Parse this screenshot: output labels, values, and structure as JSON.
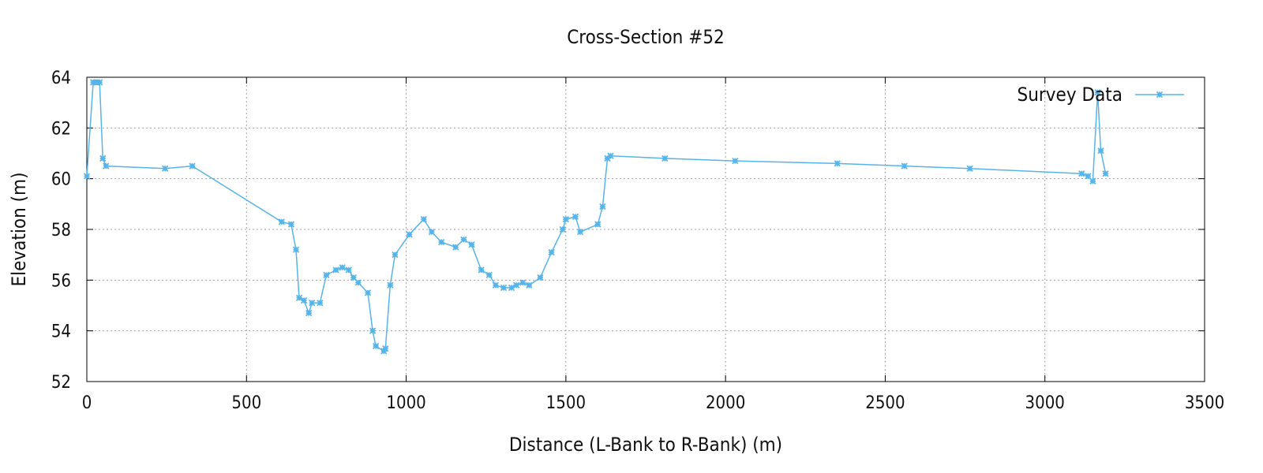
{
  "chart_data": {
    "type": "line",
    "title": "Cross-Section #52",
    "xlabel": "Distance (L-Bank to R-Bank) (m)",
    "ylabel": "Elevation (m)",
    "xlim": [
      0,
      3500
    ],
    "ylim": [
      52,
      64
    ],
    "xticks": [
      0,
      500,
      1000,
      1500,
      2000,
      2500,
      3000,
      3500
    ],
    "yticks": [
      52,
      54,
      56,
      58,
      60,
      62,
      64
    ],
    "grid": true,
    "legend_position": "top-right",
    "series_color": "#56B4E9",
    "series": [
      {
        "name": "Survey Data",
        "x": [
          0,
          20,
          30,
          40,
          50,
          60,
          245,
          330,
          610,
          640,
          655,
          665,
          680,
          695,
          705,
          730,
          750,
          780,
          800,
          820,
          835,
          850,
          880,
          895,
          905,
          930,
          935,
          950,
          965,
          1010,
          1055,
          1080,
          1110,
          1155,
          1180,
          1205,
          1235,
          1260,
          1280,
          1305,
          1330,
          1345,
          1365,
          1385,
          1420,
          1455,
          1490,
          1500,
          1530,
          1545,
          1600,
          1615,
          1630,
          1640,
          1810,
          2030,
          2350,
          2560,
          2765,
          3115,
          3135,
          3150,
          3165,
          3175,
          3190
        ],
        "y": [
          60.1,
          63.8,
          63.8,
          63.8,
          60.8,
          60.5,
          60.4,
          60.5,
          58.3,
          58.2,
          57.2,
          55.3,
          55.2,
          54.7,
          55.1,
          55.1,
          56.2,
          56.4,
          56.5,
          56.4,
          56.1,
          55.9,
          55.5,
          54.0,
          53.4,
          53.2,
          53.3,
          55.8,
          57.0,
          57.8,
          58.4,
          57.9,
          57.5,
          57.3,
          57.6,
          57.4,
          56.4,
          56.2,
          55.8,
          55.7,
          55.7,
          55.8,
          55.9,
          55.8,
          56.1,
          57.1,
          58.0,
          58.4,
          58.5,
          57.9,
          58.2,
          58.9,
          60.8,
          60.9,
          60.8,
          60.7,
          60.6,
          60.5,
          60.4,
          60.2,
          60.1,
          59.9,
          63.4,
          61.1,
          60.2
        ]
      }
    ]
  }
}
